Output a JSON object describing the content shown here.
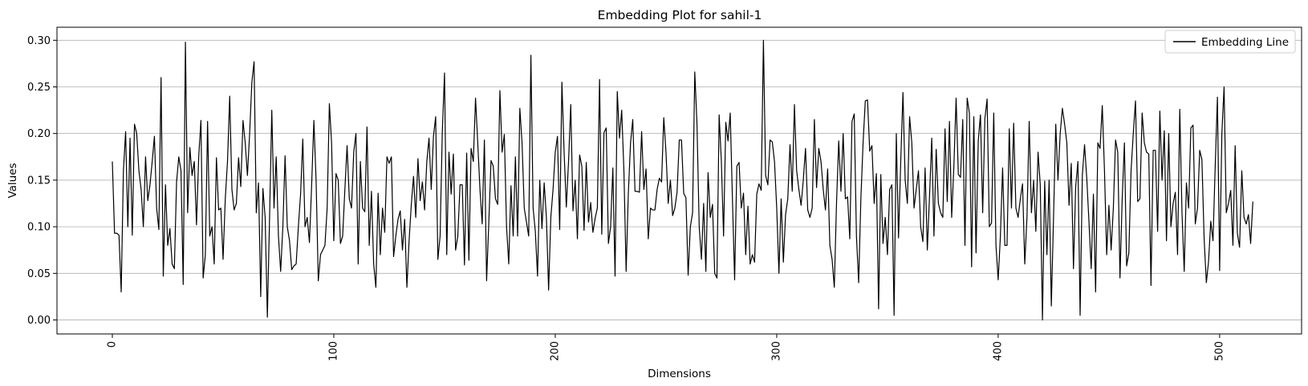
{
  "chart_data": {
    "type": "line",
    "title": "Embedding Plot for sahil-1",
    "xlabel": "Dimensions",
    "ylabel": "Values",
    "xlim": [
      -25,
      537
    ],
    "ylim": [
      -0.015,
      0.314
    ],
    "xticks": [
      0,
      100,
      200,
      300,
      400,
      500
    ],
    "xtick_labels": [
      "0",
      "100",
      "200",
      "300",
      "400",
      "500"
    ],
    "xtick_rotation": 90,
    "yticks": [
      0.0,
      0.05,
      0.1,
      0.15,
      0.2,
      0.25,
      0.3
    ],
    "ytick_labels": [
      "0.00",
      "0.05",
      "0.10",
      "0.15",
      "0.20",
      "0.25",
      "0.30"
    ],
    "grid": "horizontal",
    "legend_position": "top-right",
    "series": [
      {
        "name": "Embedding Line",
        "color": "#000000",
        "x_start": 0,
        "x_step": 1,
        "values": [
          0.17,
          0.093,
          0.093,
          0.091,
          0.03,
          0.16,
          0.202,
          0.1,
          0.195,
          0.091,
          0.21,
          0.2,
          0.16,
          0.14,
          0.1,
          0.175,
          0.128,
          0.145,
          0.17,
          0.197,
          0.12,
          0.097,
          0.26,
          0.047,
          0.145,
          0.08,
          0.098,
          0.06,
          0.055,
          0.148,
          0.175,
          0.16,
          0.038,
          0.298,
          0.115,
          0.185,
          0.155,
          0.17,
          0.102,
          0.175,
          0.214,
          0.045,
          0.07,
          0.213,
          0.09,
          0.1,
          0.06,
          0.174,
          0.118,
          0.12,
          0.065,
          0.13,
          0.17,
          0.24,
          0.14,
          0.118,
          0.125,
          0.174,
          0.143,
          0.214,
          0.19,
          0.155,
          0.2,
          0.255,
          0.277,
          0.115,
          0.147,
          0.025,
          0.141,
          0.11,
          0.003,
          0.11,
          0.225,
          0.12,
          0.175,
          0.09,
          0.052,
          0.1,
          0.176,
          0.1,
          0.085,
          0.054,
          0.058,
          0.06,
          0.1,
          0.135,
          0.194,
          0.1,
          0.11,
          0.083,
          0.145,
          0.214,
          0.15,
          0.042,
          0.07,
          0.075,
          0.08,
          0.12,
          0.232,
          0.19,
          0.085,
          0.157,
          0.15,
          0.082,
          0.09,
          0.14,
          0.187,
          0.13,
          0.12,
          0.18,
          0.2,
          0.06,
          0.17,
          0.12,
          0.116,
          0.207,
          0.08,
          0.138,
          0.06,
          0.035,
          0.136,
          0.07,
          0.12,
          0.094,
          0.175,
          0.168,
          0.175,
          0.068,
          0.09,
          0.108,
          0.117,
          0.075,
          0.108,
          0.035,
          0.085,
          0.124,
          0.154,
          0.11,
          0.173,
          0.128,
          0.148,
          0.118,
          0.17,
          0.195,
          0.14,
          0.197,
          0.218,
          0.065,
          0.09,
          0.202,
          0.265,
          0.07,
          0.18,
          0.135,
          0.178,
          0.075,
          0.09,
          0.145,
          0.145,
          0.059,
          0.179,
          0.064,
          0.184,
          0.17,
          0.238,
          0.19,
          0.14,
          0.103,
          0.193,
          0.042,
          0.105,
          0.171,
          0.165,
          0.13,
          0.124,
          0.246,
          0.18,
          0.199,
          0.1,
          0.06,
          0.144,
          0.09,
          0.175,
          0.09,
          0.227,
          0.19,
          0.12,
          0.105,
          0.09,
          0.284,
          0.12,
          0.095,
          0.047,
          0.15,
          0.098,
          0.147,
          0.11,
          0.032,
          0.11,
          0.14,
          0.18,
          0.197,
          0.097,
          0.255,
          0.18,
          0.121,
          0.17,
          0.231,
          0.117,
          0.15,
          0.087,
          0.177,
          0.165,
          0.096,
          0.169,
          0.105,
          0.126,
          0.094,
          0.109,
          0.12,
          0.258,
          0.092,
          0.201,
          0.206,
          0.082,
          0.1,
          0.163,
          0.047,
          0.245,
          0.195,
          0.225,
          0.16,
          0.052,
          0.136,
          0.19,
          0.215,
          0.138,
          0.138,
          0.137,
          0.202,
          0.14,
          0.162,
          0.087,
          0.12,
          0.118,
          0.118,
          0.14,
          0.152,
          0.148,
          0.217,
          0.18,
          0.125,
          0.15,
          0.112,
          0.12,
          0.137,
          0.193,
          0.193,
          0.136,
          0.131,
          0.048,
          0.1,
          0.115,
          0.266,
          0.21,
          0.1,
          0.065,
          0.125,
          0.052,
          0.158,
          0.11,
          0.124,
          0.05,
          0.045,
          0.22,
          0.17,
          0.09,
          0.212,
          0.192,
          0.222,
          0.13,
          0.043,
          0.165,
          0.169,
          0.12,
          0.136,
          0.07,
          0.122,
          0.06,
          0.07,
          0.062,
          0.135,
          0.146,
          0.139,
          0.3,
          0.155,
          0.145,
          0.193,
          0.191,
          0.17,
          0.12,
          0.05,
          0.13,
          0.062,
          0.113,
          0.13,
          0.188,
          0.138,
          0.231,
          0.16,
          0.14,
          0.123,
          0.15,
          0.184,
          0.118,
          0.11,
          0.12,
          0.215,
          0.142,
          0.184,
          0.17,
          0.14,
          0.118,
          0.162,
          0.08,
          0.065,
          0.035,
          0.125,
          0.192,
          0.138,
          0.2,
          0.13,
          0.132,
          0.087,
          0.213,
          0.221,
          0.09,
          0.04,
          0.13,
          0.19,
          0.235,
          0.236,
          0.181,
          0.187,
          0.125,
          0.157,
          0.012,
          0.156,
          0.082,
          0.11,
          0.07,
          0.14,
          0.145,
          0.005,
          0.2,
          0.088,
          0.17,
          0.244,
          0.15,
          0.125,
          0.218,
          0.19,
          0.12,
          0.14,
          0.16,
          0.1,
          0.084,
          0.163,
          0.075,
          0.133,
          0.195,
          0.09,
          0.183,
          0.125,
          0.115,
          0.11,
          0.205,
          0.127,
          0.213,
          0.11,
          0.165,
          0.238,
          0.156,
          0.153,
          0.215,
          0.08,
          0.238,
          0.222,
          0.057,
          0.218,
          0.072,
          0.192,
          0.22,
          0.115,
          0.216,
          0.237,
          0.1,
          0.104,
          0.222,
          0.08,
          0.043,
          0.09,
          0.163,
          0.08,
          0.08,
          0.205,
          0.12,
          0.211,
          0.12,
          0.11,
          0.13,
          0.146,
          0.06,
          0.11,
          0.213,
          0.115,
          0.15,
          0.095,
          0.18,
          0.145,
          0.0,
          0.149,
          0.07,
          0.15,
          0.015,
          0.11,
          0.21,
          0.15,
          0.2,
          0.227,
          0.21,
          0.19,
          0.123,
          0.168,
          0.055,
          0.143,
          0.17,
          0.005,
          0.155,
          0.188,
          0.152,
          0.105,
          0.055,
          0.135,
          0.03,
          0.19,
          0.184,
          0.23,
          0.16,
          0.07,
          0.123,
          0.075,
          0.12,
          0.193,
          0.18,
          0.045,
          0.13,
          0.19,
          0.058,
          0.072,
          0.16,
          0.2,
          0.235,
          0.127,
          0.13,
          0.222,
          0.19,
          0.18,
          0.178,
          0.037,
          0.182,
          0.182,
          0.095,
          0.224,
          0.15,
          0.203,
          0.085,
          0.2,
          0.1,
          0.125,
          0.137,
          0.07,
          0.226,
          0.115,
          0.052,
          0.147,
          0.12,
          0.206,
          0.209,
          0.103,
          0.12,
          0.182,
          0.172,
          0.087,
          0.04,
          0.063,
          0.106,
          0.085,
          0.165,
          0.239,
          0.053,
          0.2,
          0.25,
          0.115,
          0.125,
          0.139,
          0.08,
          0.187,
          0.093,
          0.078,
          0.16,
          0.11,
          0.103,
          0.113,
          0.082,
          0.127
        ]
      }
    ]
  }
}
